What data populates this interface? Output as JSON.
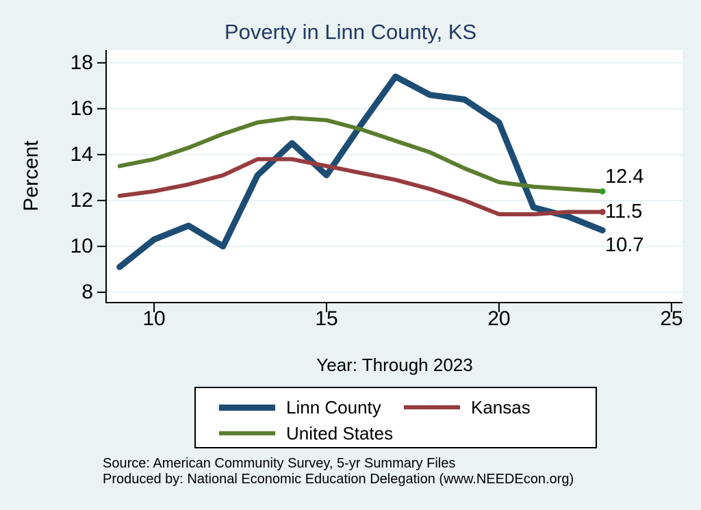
{
  "title": "Poverty in Linn County, KS",
  "y_axis_title": "Percent",
  "x_axis_title": "Year: Through 2023",
  "end_labels": {
    "us": "12.4",
    "kansas": "11.5",
    "linn": "10.7"
  },
  "legend": {
    "items": [
      {
        "label": "Linn County",
        "color": "#1d4d74"
      },
      {
        "label": "Kansas",
        "color": "#963c3f"
      },
      {
        "label": "United States",
        "color": "#5b7d2e"
      }
    ]
  },
  "footer": {
    "line1": "Source: American Community Survey, 5-yr Summary Files",
    "line2": "Produced by: National Economic Education Delegation (www.NEEDEcon.org)"
  },
  "colors": {
    "background": "#eaf2f3",
    "plot_background": "#ffffff",
    "gridline": "#e3eef2",
    "axis": "#000000",
    "title": "#223a63"
  },
  "chart_data": {
    "type": "line",
    "title": "Poverty in Linn County, KS",
    "xlabel": "Year: Through 2023",
    "ylabel": "Percent",
    "grid": "horizontal",
    "legend_position": "bottom",
    "x": [
      9,
      10,
      11,
      12,
      13,
      14,
      15,
      16,
      17,
      18,
      19,
      20,
      21,
      22,
      23
    ],
    "x_ticks": [
      10,
      15,
      20,
      25
    ],
    "y_ticks": [
      8,
      10,
      12,
      14,
      16,
      18
    ],
    "x_range": [
      8.63,
      25.32
    ],
    "y_range": [
      7.58,
      18.56
    ],
    "series": [
      {
        "name": "Linn County",
        "color": "#1d4d74",
        "width": 9,
        "end_dot": "#1d4d74",
        "values": [
          9.1,
          10.3,
          10.9,
          10.0,
          13.1,
          14.5,
          13.1,
          15.3,
          17.4,
          16.6,
          16.4,
          15.4,
          11.7,
          11.3,
          10.7
        ]
      },
      {
        "name": "Kansas",
        "color": "#963c3f",
        "width": 6,
        "end_dot": "#963c3f",
        "values": [
          12.2,
          12.4,
          12.7,
          13.1,
          13.8,
          13.8,
          13.5,
          13.2,
          12.9,
          12.5,
          12.0,
          11.4,
          11.4,
          11.5,
          11.5
        ]
      },
      {
        "name": "United States",
        "color": "#5b7d2e",
        "width": 6,
        "end_dot": "#2fa02a",
        "values": [
          13.5,
          13.8,
          14.3,
          14.9,
          15.4,
          15.6,
          15.5,
          15.1,
          14.6,
          14.1,
          13.4,
          12.8,
          12.6,
          12.5,
          12.4
        ]
      }
    ]
  }
}
